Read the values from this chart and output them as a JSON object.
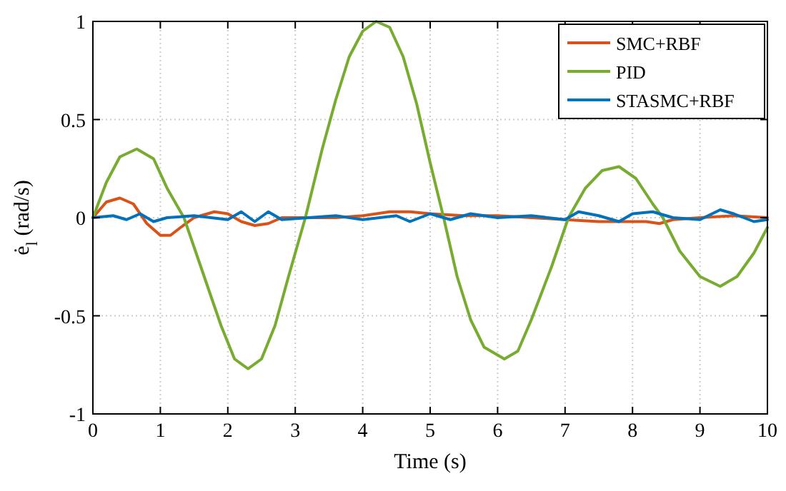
{
  "chart_data": {
    "type": "line",
    "xlabel": "Time (s)",
    "ylabel": "ė$_{l}$ (rad/s)",
    "xlim": [
      0,
      10
    ],
    "ylim": [
      -1,
      1
    ],
    "xticks": [
      0,
      1,
      2,
      3,
      4,
      5,
      6,
      7,
      8,
      9,
      10
    ],
    "yticks": [
      -1,
      -0.5,
      0,
      0.5,
      1
    ],
    "grid": true,
    "legend": "top right",
    "line_style": "solid",
    "marker": "none",
    "series": [
      {
        "name": "SMC+RBF",
        "color": "#d95319",
        "x": [
          0,
          0.2,
          0.4,
          0.6,
          0.8,
          1.0,
          1.15,
          1.3,
          1.5,
          1.8,
          2.0,
          2.2,
          2.4,
          2.6,
          2.8,
          3.2,
          3.6,
          4.0,
          4.4,
          4.7,
          5.0,
          5.5,
          6.0,
          6.5,
          7.0,
          7.5,
          7.8,
          8.2,
          8.4,
          8.6,
          9.0,
          9.5,
          10
        ],
        "values": [
          0,
          0.08,
          0.1,
          0.07,
          -0.03,
          -0.09,
          -0.09,
          -0.05,
          0,
          0.03,
          0.02,
          -0.02,
          -0.04,
          -0.03,
          0,
          0,
          0,
          0.01,
          0.03,
          0.03,
          0.02,
          0.01,
          0.01,
          0,
          -0.01,
          -0.02,
          -0.02,
          -0.02,
          -0.03,
          -0.01,
          0,
          0.01,
          0
        ]
      },
      {
        "name": "PID",
        "color": "#77ac30",
        "x": [
          0,
          0.2,
          0.4,
          0.65,
          0.9,
          1.1,
          1.35,
          1.6,
          1.9,
          2.1,
          2.3,
          2.5,
          2.7,
          2.9,
          3.15,
          3.4,
          3.6,
          3.8,
          4.0,
          4.2,
          4.4,
          4.6,
          4.8,
          5.0,
          5.2,
          5.4,
          5.6,
          5.8,
          6.1,
          6.3,
          6.5,
          6.8,
          7.05,
          7.3,
          7.55,
          7.8,
          8.05,
          8.3,
          8.45,
          8.7,
          9.0,
          9.3,
          9.55,
          9.8,
          10
        ],
        "values": [
          0,
          0.18,
          0.31,
          0.35,
          0.3,
          0.15,
          0,
          -0.25,
          -0.55,
          -0.72,
          -0.77,
          -0.72,
          -0.55,
          -0.3,
          0,
          0.35,
          0.6,
          0.82,
          0.95,
          1.0,
          0.97,
          0.82,
          0.58,
          0.28,
          0,
          -0.3,
          -0.52,
          -0.66,
          -0.72,
          -0.68,
          -0.52,
          -0.25,
          0,
          0.15,
          0.24,
          0.26,
          0.2,
          0.07,
          0,
          -0.17,
          -0.3,
          -0.35,
          -0.3,
          -0.18,
          -0.05
        ]
      },
      {
        "name": "STASMC+RBF",
        "color": "#0072bd",
        "x": [
          0,
          0.3,
          0.5,
          0.7,
          0.9,
          1.1,
          1.5,
          2.0,
          2.2,
          2.4,
          2.6,
          2.8,
          3.2,
          3.6,
          4.0,
          4.5,
          4.7,
          5.0,
          5.3,
          5.6,
          6.0,
          6.5,
          7.0,
          7.2,
          7.5,
          7.8,
          8.0,
          8.3,
          8.6,
          9.0,
          9.3,
          9.5,
          9.8,
          10
        ],
        "values": [
          0,
          0.01,
          -0.01,
          0.02,
          -0.02,
          0,
          0.01,
          -0.01,
          0.03,
          -0.02,
          0.03,
          -0.01,
          0,
          0.01,
          -0.01,
          0.01,
          -0.02,
          0.02,
          -0.01,
          0.02,
          0,
          0.01,
          -0.01,
          0.03,
          0.01,
          -0.02,
          0.02,
          0.03,
          0,
          -0.01,
          0.04,
          0.02,
          -0.02,
          -0.01
        ]
      }
    ]
  }
}
